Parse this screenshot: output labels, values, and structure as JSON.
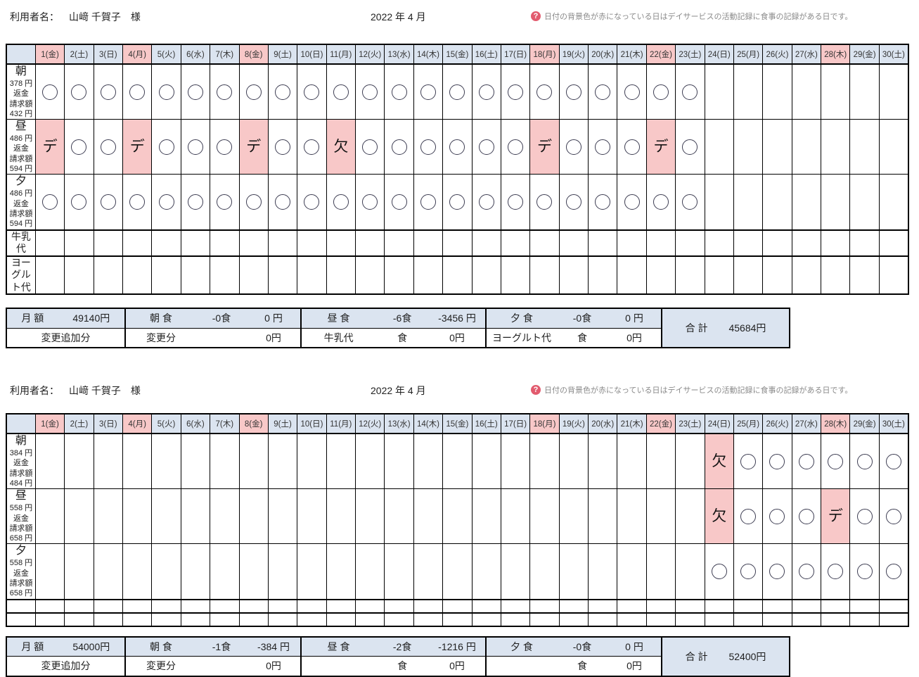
{
  "colors": {
    "header_bg": "#dbe4f0",
    "highlight_bg": "#f8c8c8",
    "help_icon_red": "#e25b6e"
  },
  "help": {
    "icon": "question-icon",
    "text": "日付の背景色が赤になっている日はデイサービスの活動記録に食事の記録がある日です。"
  },
  "days": [
    {
      "label": "1(金)",
      "red": true
    },
    {
      "label": "2(土)",
      "red": false
    },
    {
      "label": "3(日)",
      "red": false
    },
    {
      "label": "4(月)",
      "red": true
    },
    {
      "label": "5(火)",
      "red": false
    },
    {
      "label": "6(水)",
      "red": false
    },
    {
      "label": "7(木)",
      "red": false
    },
    {
      "label": "8(金)",
      "red": true
    },
    {
      "label": "9(土)",
      "red": false
    },
    {
      "label": "10(日)",
      "red": false
    },
    {
      "label": "11(月)",
      "red": false
    },
    {
      "label": "12(火)",
      "red": false
    },
    {
      "label": "13(水)",
      "red": false
    },
    {
      "label": "14(木)",
      "red": false
    },
    {
      "label": "15(金)",
      "red": false
    },
    {
      "label": "16(土)",
      "red": false
    },
    {
      "label": "17(日)",
      "red": false
    },
    {
      "label": "18(月)",
      "red": true
    },
    {
      "label": "19(火)",
      "red": false
    },
    {
      "label": "20(水)",
      "red": false
    },
    {
      "label": "21(木)",
      "red": false
    },
    {
      "label": "22(金)",
      "red": true
    },
    {
      "label": "23(土)",
      "red": false
    },
    {
      "label": "24(日)",
      "red": false
    },
    {
      "label": "25(月)",
      "red": false
    },
    {
      "label": "26(火)",
      "red": false
    },
    {
      "label": "27(水)",
      "red": false
    },
    {
      "label": "28(木)",
      "red": true
    },
    {
      "label": "29(金)",
      "red": false
    },
    {
      "label": "30(土)",
      "red": false
    }
  ],
  "sections": [
    {
      "user_label": "利用者名：",
      "user_name": "山﨑 千賀子　様",
      "month": "2022 年 4 月",
      "rows": [
        {
          "id": "morning",
          "name": "朝",
          "subs": [
            "378 円返金",
            "請求額 432 円"
          ],
          "size": "tall",
          "cells": [
            "○",
            "○",
            "○",
            "○",
            "○",
            "○",
            "○",
            "○",
            "○",
            "○",
            "○",
            "○",
            "○",
            "○",
            "○",
            "○",
            "○",
            "○",
            "○",
            "○",
            "○",
            "○",
            "○",
            "",
            "",
            "",
            "",
            "",
            "",
            ""
          ]
        },
        {
          "id": "lunch",
          "name": "昼",
          "subs": [
            "486 円返金",
            "請求額 594 円"
          ],
          "size": "tall",
          "cells": [
            "デ",
            "○",
            "○",
            "デ",
            "○",
            "○",
            "○",
            "デ",
            "○",
            "○",
            "欠",
            "○",
            "○",
            "○",
            "○",
            "○",
            "○",
            "デ",
            "○",
            "○",
            "○",
            "デ",
            "○",
            "",
            "",
            "",
            "",
            "",
            "",
            ""
          ]
        },
        {
          "id": "dinner",
          "name": "夕",
          "subs": [
            "486 円返金",
            "請求額 594 円"
          ],
          "size": "tall",
          "cells": [
            "○",
            "○",
            "○",
            "○",
            "○",
            "○",
            "○",
            "○",
            "○",
            "○",
            "○",
            "○",
            "○",
            "○",
            "○",
            "○",
            "○",
            "○",
            "○",
            "○",
            "○",
            "○",
            "○",
            "",
            "",
            "",
            "",
            "",
            "",
            ""
          ]
        },
        {
          "id": "milk",
          "name": "牛乳代",
          "subs": [],
          "size": "thin30",
          "cells": [
            "",
            "",
            "",
            "",
            "",
            "",
            "",
            "",
            "",
            "",
            "",
            "",
            "",
            "",
            "",
            "",
            "",
            "",
            "",
            "",
            "",
            "",
            "",
            "",
            "",
            "",
            "",
            "",
            "",
            ""
          ]
        },
        {
          "id": "yogurt",
          "name": "ヨーグルト代",
          "subs": [],
          "size": "thin30",
          "cells": [
            "",
            "",
            "",
            "",
            "",
            "",
            "",
            "",
            "",
            "",
            "",
            "",
            "",
            "",
            "",
            "",
            "",
            "",
            "",
            "",
            "",
            "",
            "",
            "",
            "",
            "",
            "",
            "",
            "",
            ""
          ]
        }
      ],
      "summary": {
        "monthly_label": "月 額",
        "monthly_value": "49140円",
        "row2_left": "変更追加分",
        "groups": [
          {
            "id": "breakfast",
            "r1": [
              "朝 食",
              "-0食",
              "0 円"
            ],
            "r2": [
              "変更分",
              "",
              "0円"
            ]
          },
          {
            "id": "lunch",
            "r1": [
              "昼 食",
              "-6食",
              "-3456 円"
            ],
            "r2": [
              "牛乳代",
              "食",
              "0円"
            ]
          },
          {
            "id": "dinner",
            "r1": [
              "夕 食",
              "-0食",
              "0 円"
            ],
            "r2": [
              "ヨーグルト代",
              "食",
              "0円"
            ]
          }
        ],
        "total_label": "合 計",
        "total_value": "45684円"
      }
    },
    {
      "user_label": "利用者名：",
      "user_name": "山﨑 千賀子　様",
      "month": "2022 年 4 月",
      "rows": [
        {
          "id": "morning",
          "name": "朝",
          "subs": [
            "384 円返金",
            "請求額 484 円"
          ],
          "size": "tall",
          "cells": [
            "",
            "",
            "",
            "",
            "",
            "",
            "",
            "",
            "",
            "",
            "",
            "",
            "",
            "",
            "",
            "",
            "",
            "",
            "",
            "",
            "",
            "",
            "",
            "欠",
            "○",
            "○",
            "○",
            "○",
            "○",
            "○"
          ]
        },
        {
          "id": "lunch",
          "name": "昼",
          "subs": [
            "558 円返金",
            "請求額 658 円"
          ],
          "size": "tall",
          "cells": [
            "",
            "",
            "",
            "",
            "",
            "",
            "",
            "",
            "",
            "",
            "",
            "",
            "",
            "",
            "",
            "",
            "",
            "",
            "",
            "",
            "",
            "",
            "",
            "欠",
            "○",
            "○",
            "○",
            "デ",
            "○",
            "○"
          ]
        },
        {
          "id": "dinner",
          "name": "夕",
          "subs": [
            "558 円返金",
            "請求額 658 円"
          ],
          "size": "tall",
          "cells": [
            "",
            "",
            "",
            "",
            "",
            "",
            "",
            "",
            "",
            "",
            "",
            "",
            "",
            "",
            "",
            "",
            "",
            "",
            "",
            "",
            "",
            "",
            "",
            "○",
            "○",
            "○",
            "○",
            "○",
            "○",
            "○"
          ]
        },
        {
          "id": "milk",
          "name": "",
          "subs": [],
          "size": "thin20",
          "cells": [
            "",
            "",
            "",
            "",
            "",
            "",
            "",
            "",
            "",
            "",
            "",
            "",
            "",
            "",
            "",
            "",
            "",
            "",
            "",
            "",
            "",
            "",
            "",
            "",
            "",
            "",
            "",
            "",
            "",
            ""
          ]
        },
        {
          "id": "yogurt",
          "name": "",
          "subs": [],
          "size": "thin20",
          "cells": [
            "",
            "",
            "",
            "",
            "",
            "",
            "",
            "",
            "",
            "",
            "",
            "",
            "",
            "",
            "",
            "",
            "",
            "",
            "",
            "",
            "",
            "",
            "",
            "",
            "",
            "",
            "",
            "",
            "",
            ""
          ]
        }
      ],
      "summary": {
        "monthly_label": "月 額",
        "monthly_value": "54000円",
        "row2_left": "変更追加分",
        "groups": [
          {
            "id": "breakfast",
            "r1": [
              "朝 食",
              "-1食",
              "-384 円"
            ],
            "r2": [
              "変更分",
              "",
              "0円"
            ]
          },
          {
            "id": "lunch",
            "r1": [
              "昼 食",
              "-2食",
              "-1216 円"
            ],
            "r2": [
              "",
              "食",
              "0円"
            ]
          },
          {
            "id": "dinner",
            "r1": [
              "夕 食",
              "-0食",
              "0 円"
            ],
            "r2": [
              "",
              "食",
              "0円"
            ]
          }
        ],
        "total_label": "合 計",
        "total_value": "52400円"
      }
    }
  ]
}
